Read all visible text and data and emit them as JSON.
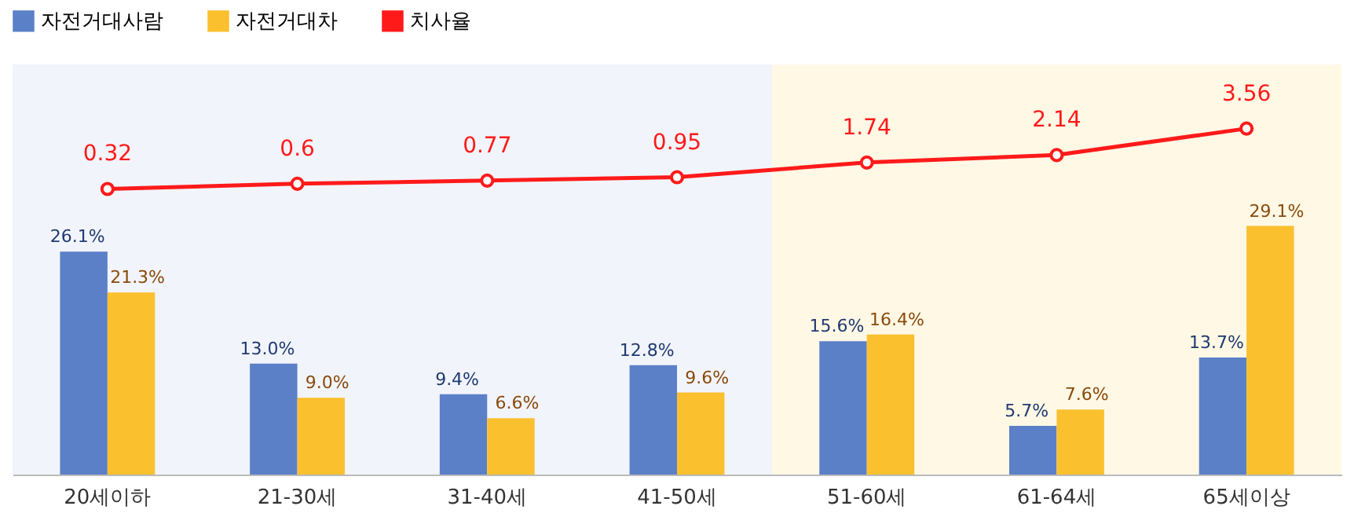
{
  "chart_data": {
    "type": "bar",
    "categories": [
      "20세이하",
      "21-30세",
      "31-40세",
      "41-50세",
      "51-60세",
      "61-64세",
      "65세이상"
    ],
    "series": [
      {
        "name": "자전거대사람",
        "color": "#5b80c8",
        "values": [
          26.1,
          13.0,
          9.4,
          12.8,
          15.6,
          5.7,
          13.7
        ],
        "value_labels": [
          "26.1%",
          "13.0%",
          "9.4%",
          "12.8%",
          "15.6%",
          "5.7%",
          "13.7%"
        ]
      },
      {
        "name": "자전거대차",
        "color": "#fbc02d",
        "values": [
          21.3,
          9.0,
          6.6,
          9.6,
          16.4,
          7.6,
          29.1
        ],
        "value_labels": [
          "21.3%",
          "9.0%",
          "6.6%",
          "9.6%",
          "16.4%",
          "7.6%",
          "29.1%"
        ]
      },
      {
        "name": "치사율",
        "type": "line",
        "axis": "y2",
        "color": "#ff1a1a",
        "marker": "circle",
        "values": [
          0.32,
          0.6,
          0.77,
          0.95,
          1.74,
          2.14,
          3.56
        ],
        "value_labels": [
          "0.32",
          "0.6",
          "0.77",
          "0.95",
          "1.74",
          "2.14",
          "3.56"
        ]
      }
    ],
    "ylim": [
      0,
      48
    ],
    "y2lim": [
      -15,
      7
    ],
    "tick_labels": "x",
    "grid": false,
    "legend": "top",
    "bands": [
      {
        "axis": "x",
        "from": "20세이하",
        "to": "41-50세",
        "color": "#f2f4fb"
      },
      {
        "axis": "x",
        "from": "51-60세",
        "to": "65세이상",
        "color": "#fff8e5"
      }
    ]
  }
}
